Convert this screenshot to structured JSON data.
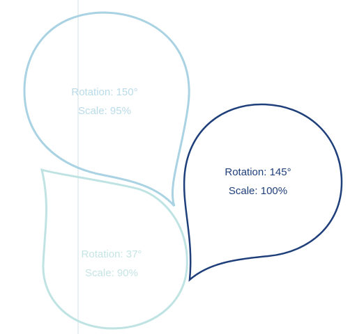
{
  "colors": {
    "background": "#ffffff",
    "guide_line": "#cfe3ea",
    "bubble_top_outline": "#a9d2e3",
    "bubble_top_text": "#b9dbe8",
    "bubble_bottom_outline": "#bfe3e3",
    "bubble_bottom_text": "#c6e4e4",
    "bubble_main_outline": "#1f3f7a",
    "bubble_main_text": "#1f3f7a"
  },
  "bubbles": {
    "top": {
      "rotation_text": "Rotation: 150°",
      "scale_text": "Scale: 95%"
    },
    "bottom": {
      "rotation_text": "Rotation: 37°",
      "scale_text": "Scale: 90%"
    },
    "main": {
      "rotation_text": "Rotation: 145°",
      "scale_text": "Scale: 100%"
    }
  }
}
